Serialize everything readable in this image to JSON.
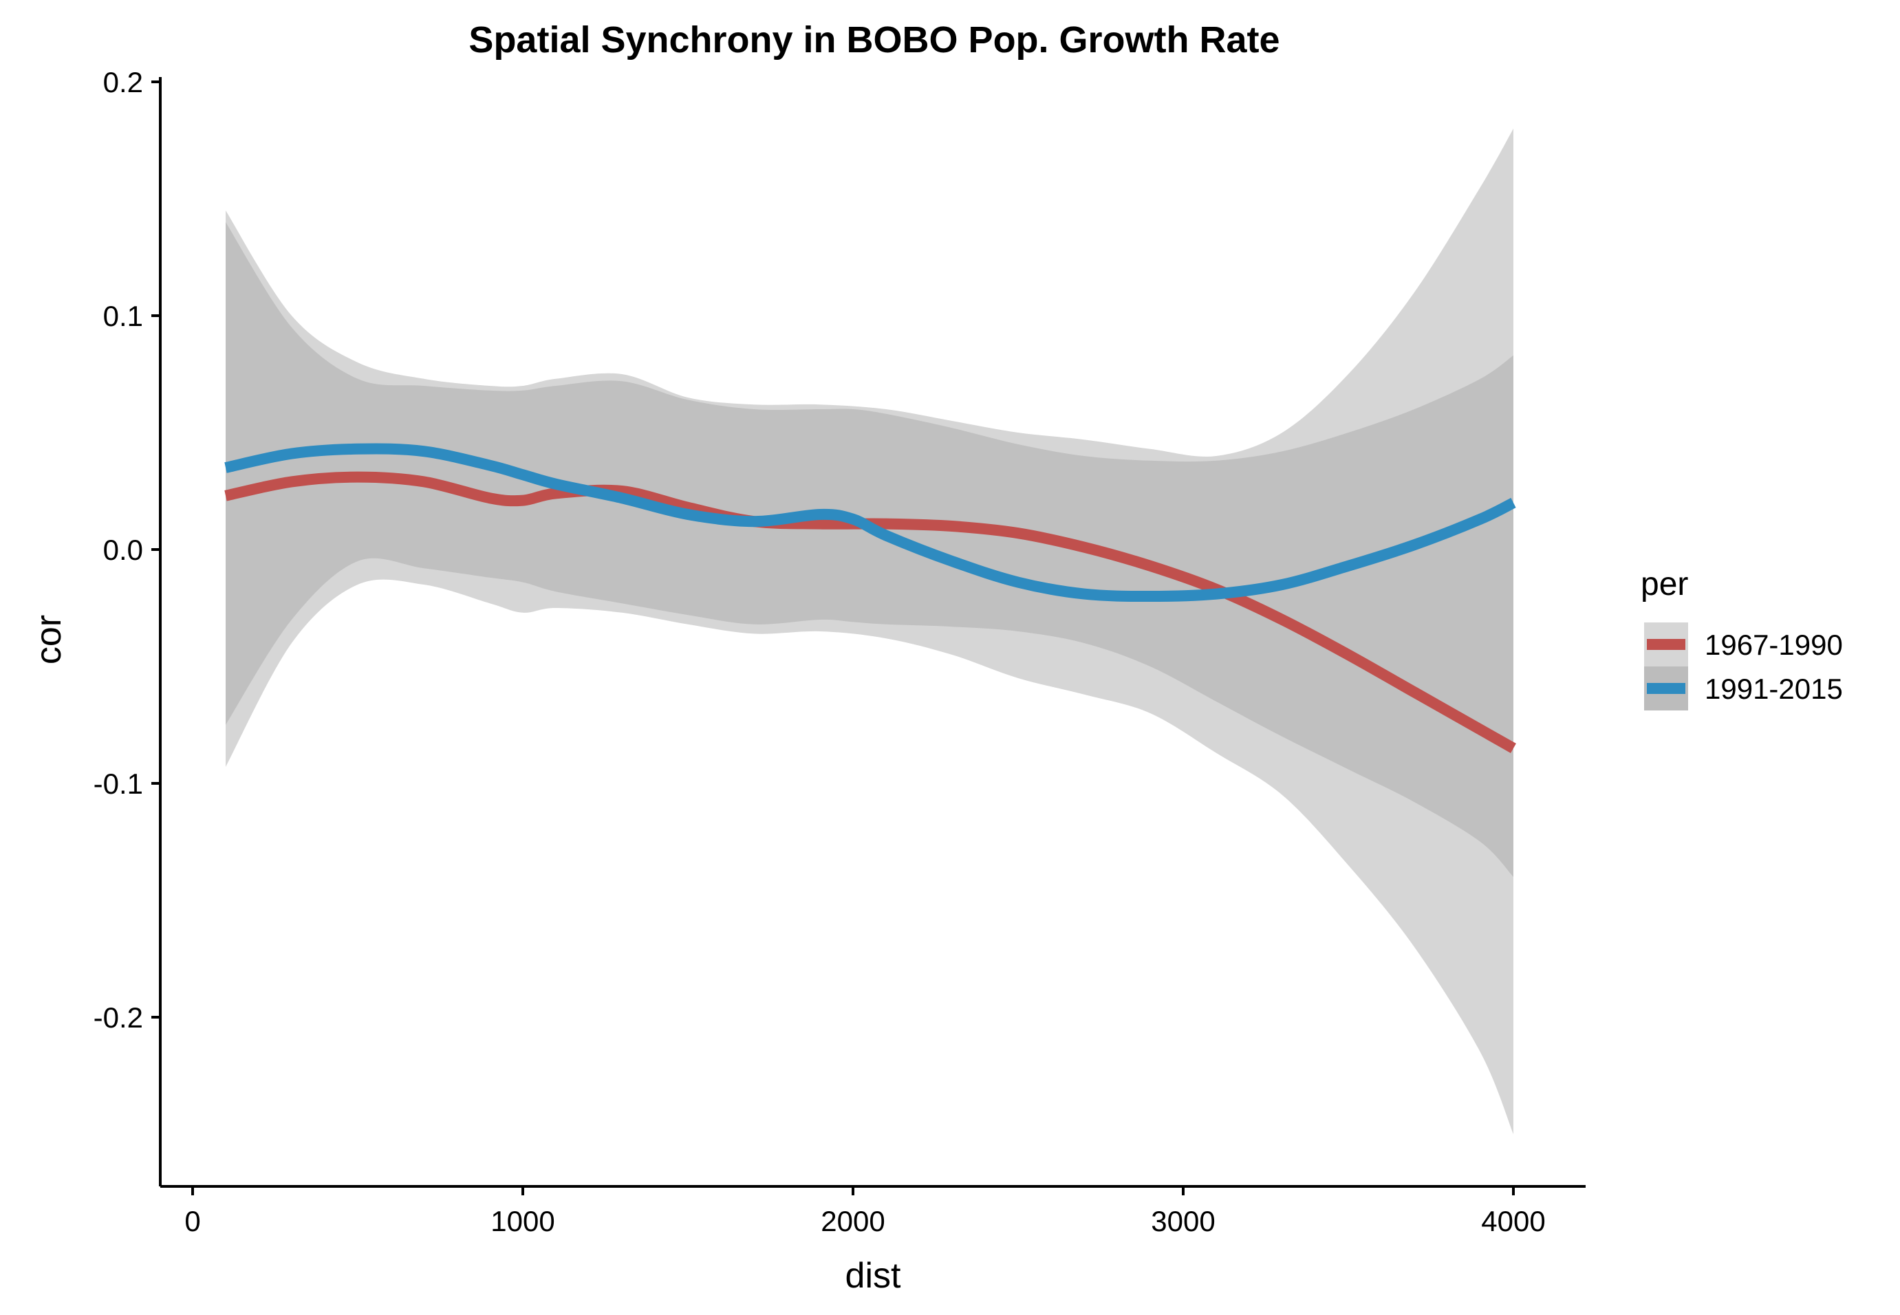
{
  "chart_data": {
    "type": "line",
    "title": "Spatial Synchrony in BOBO Pop. Growth Rate",
    "xlabel": "dist",
    "ylabel": "cor",
    "xlim": [
      -100,
      4200
    ],
    "ylim": [
      -0.27,
      0.2
    ],
    "x_ticks": [
      0,
      1000,
      2000,
      3000,
      4000
    ],
    "x_tick_labels": [
      "0",
      "1000",
      "2000",
      "3000",
      "4000"
    ],
    "y_ticks": [
      0.2,
      0.1,
      0.0,
      -0.1,
      -0.2
    ],
    "y_tick_labels": [
      "0.2",
      "0.1",
      "0.0",
      "-0.1",
      "-0.2"
    ],
    "grid": false,
    "legend": {
      "title": "per",
      "position": "right"
    },
    "series": [
      {
        "name": "1967-1990",
        "color": "#c0504d",
        "ribbon_color": "#d6d6d6",
        "x": [
          100,
          300,
          500,
          700,
          900,
          1000,
          1100,
          1300,
          1500,
          1700,
          1900,
          2100,
          2300,
          2500,
          2700,
          2900,
          3100,
          3300,
          3500,
          3700,
          3900,
          4000
        ],
        "y": [
          0.023,
          0.029,
          0.031,
          0.029,
          0.022,
          0.021,
          0.024,
          0.025,
          0.018,
          0.012,
          0.011,
          0.011,
          0.01,
          0.007,
          0.001,
          -0.007,
          -0.017,
          -0.03,
          -0.045,
          -0.061,
          -0.077,
          -0.085
        ],
        "lower": [
          -0.093,
          -0.04,
          -0.015,
          -0.015,
          -0.023,
          -0.027,
          -0.025,
          -0.027,
          -0.032,
          -0.036,
          -0.035,
          -0.038,
          -0.045,
          -0.055,
          -0.062,
          -0.07,
          -0.087,
          -0.105,
          -0.135,
          -0.17,
          -0.215,
          -0.25
        ],
        "upper": [
          0.145,
          0.1,
          0.08,
          0.073,
          0.07,
          0.07,
          0.073,
          0.075,
          0.065,
          0.062,
          0.062,
          0.06,
          0.055,
          0.05,
          0.047,
          0.043,
          0.04,
          0.05,
          0.075,
          0.11,
          0.155,
          0.18
        ]
      },
      {
        "name": "1991-2015",
        "color": "#2e8bc0",
        "ribbon_color": "#bcbcbc",
        "x": [
          100,
          300,
          500,
          700,
          900,
          1000,
          1100,
          1300,
          1500,
          1700,
          1900,
          2000,
          2100,
          2300,
          2500,
          2700,
          2900,
          3100,
          3300,
          3500,
          3700,
          3900,
          4000
        ],
        "y": [
          0.035,
          0.041,
          0.043,
          0.042,
          0.036,
          0.032,
          0.028,
          0.022,
          0.015,
          0.012,
          0.015,
          0.013,
          0.006,
          -0.005,
          -0.014,
          -0.019,
          -0.02,
          -0.019,
          -0.015,
          -0.007,
          0.002,
          0.013,
          0.02
        ],
        "lower": [
          -0.075,
          -0.03,
          -0.005,
          -0.008,
          -0.012,
          -0.014,
          -0.018,
          -0.023,
          -0.028,
          -0.032,
          -0.03,
          -0.031,
          -0.032,
          -0.033,
          -0.035,
          -0.04,
          -0.05,
          -0.065,
          -0.08,
          -0.094,
          -0.108,
          -0.125,
          -0.14
        ],
        "upper": [
          0.14,
          0.095,
          0.073,
          0.07,
          0.068,
          0.068,
          0.07,
          0.072,
          0.064,
          0.06,
          0.06,
          0.06,
          0.058,
          0.052,
          0.045,
          0.04,
          0.038,
          0.038,
          0.042,
          0.05,
          0.06,
          0.073,
          0.083
        ]
      }
    ]
  }
}
